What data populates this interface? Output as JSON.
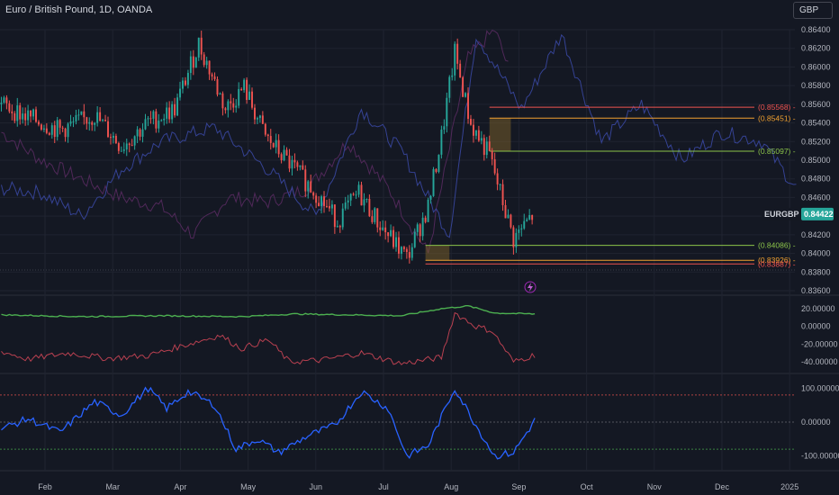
{
  "header": {
    "symbol_title": "Euro / British Pound, 1D, OANDA",
    "currency_button": "GBP"
  },
  "colors": {
    "background": "#141823",
    "grid": "#1f2330",
    "candle_up": "#26a69a",
    "candle_down": "#ef5350",
    "overlay_blue": "#3b4aa8",
    "overlay_purple": "#5b2b63",
    "level_red": "#ef5350",
    "level_orange": "#f0a030",
    "level_green": "#8bc34a",
    "price_tag": "#26a69a",
    "osc_green": "#4caf50",
    "osc_red": "#b84050",
    "osc_blue": "#2962ff"
  },
  "chart_data": [
    {
      "type": "candlestick",
      "symbol": "EURGBP",
      "last_price": "0.84422",
      "y_ticks": [
        "0.86400",
        "0.86200",
        "0.86000",
        "0.85800",
        "0.85600",
        "0.85400",
        "0.85200",
        "0.85000",
        "0.84800",
        "0.84600",
        "0.84400",
        "0.84200",
        "0.84000",
        "0.83800",
        "0.83600"
      ],
      "ylim": [
        0.836,
        0.864
      ],
      "x_ticks": [
        "Feb",
        "Mar",
        "Apr",
        "May",
        "Jun",
        "Jul",
        "Aug",
        "Sep",
        "Oct",
        "Nov",
        "Dec",
        "2025"
      ],
      "close_anchors": [
        {
          "x": 0,
          "y": 0.856
        },
        {
          "x": 10,
          "y": 0.8546
        },
        {
          "x": 22,
          "y": 0.8532
        },
        {
          "x": 35,
          "y": 0.8548
        },
        {
          "x": 45,
          "y": 0.8515
        },
        {
          "x": 55,
          "y": 0.854
        },
        {
          "x": 65,
          "y": 0.8555
        },
        {
          "x": 74,
          "y": 0.8625
        },
        {
          "x": 84,
          "y": 0.8555
        },
        {
          "x": 91,
          "y": 0.8578
        },
        {
          "x": 99,
          "y": 0.8525
        },
        {
          "x": 110,
          "y": 0.849
        },
        {
          "x": 118,
          "y": 0.8465
        },
        {
          "x": 126,
          "y": 0.8435
        },
        {
          "x": 134,
          "y": 0.8465
        },
        {
          "x": 142,
          "y": 0.843
        },
        {
          "x": 152,
          "y": 0.8395
        },
        {
          "x": 160,
          "y": 0.845
        },
        {
          "x": 165,
          "y": 0.8525
        },
        {
          "x": 170,
          "y": 0.8615
        },
        {
          "x": 176,
          "y": 0.8538
        },
        {
          "x": 183,
          "y": 0.8505
        },
        {
          "x": 192,
          "y": 0.8415
        },
        {
          "x": 200,
          "y": 0.8444
        }
      ],
      "overlay_blue_anchors": [
        {
          "x": 0,
          "y": 0.847
        },
        {
          "x": 15,
          "y": 0.8465
        },
        {
          "x": 30,
          "y": 0.844
        },
        {
          "x": 45,
          "y": 0.849
        },
        {
          "x": 60,
          "y": 0.852
        },
        {
          "x": 80,
          "y": 0.8535
        },
        {
          "x": 100,
          "y": 0.849
        },
        {
          "x": 118,
          "y": 0.844
        },
        {
          "x": 135,
          "y": 0.8555
        },
        {
          "x": 150,
          "y": 0.851
        },
        {
          "x": 168,
          "y": 0.842
        },
        {
          "x": 178,
          "y": 0.8635
        },
        {
          "x": 195,
          "y": 0.8555
        },
        {
          "x": 210,
          "y": 0.8635
        },
        {
          "x": 225,
          "y": 0.852
        },
        {
          "x": 240,
          "y": 0.856
        },
        {
          "x": 255,
          "y": 0.85
        },
        {
          "x": 270,
          "y": 0.853
        },
        {
          "x": 285,
          "y": 0.852
        },
        {
          "x": 298,
          "y": 0.847
        }
      ],
      "overlay_purple_anchors": [
        {
          "x": 0,
          "y": 0.853
        },
        {
          "x": 15,
          "y": 0.85
        },
        {
          "x": 30,
          "y": 0.848
        },
        {
          "x": 45,
          "y": 0.846
        },
        {
          "x": 60,
          "y": 0.845
        },
        {
          "x": 72,
          "y": 0.842
        },
        {
          "x": 85,
          "y": 0.846
        },
        {
          "x": 100,
          "y": 0.8455
        },
        {
          "x": 115,
          "y": 0.847
        },
        {
          "x": 130,
          "y": 0.852
        },
        {
          "x": 145,
          "y": 0.847
        },
        {
          "x": 160,
          "y": 0.84
        },
        {
          "x": 175,
          "y": 0.861
        },
        {
          "x": 185,
          "y": 0.864
        },
        {
          "x": 190,
          "y": 0.86
        }
      ],
      "levels": [
        {
          "label": "(0.85568)",
          "value": 0.85568,
          "color": "#ef5350",
          "from_x": 183
        },
        {
          "label": "(0.85451)",
          "value": 0.85451,
          "color": "#f0a030",
          "from_x": 183
        },
        {
          "label": "(0.85097)",
          "value": 0.85097,
          "color": "#8bc34a",
          "from_x": 183
        },
        {
          "label": "(0.84086)",
          "value": 0.84086,
          "color": "#8bc34a",
          "from_x": 159
        },
        {
          "label": "(0.83926)",
          "value": 0.83926,
          "color": "#f0a030",
          "from_x": 159
        },
        {
          "label": "(0.83887)",
          "value": 0.83887,
          "color": "#ef5350",
          "from_x": 159
        }
      ],
      "zones": [
        {
          "from_x": 183,
          "to_x": 191,
          "y0": 0.85097,
          "y1": 0.85451
        },
        {
          "from_x": 159,
          "to_x": 168,
          "y0": 0.83926,
          "y1": 0.84086
        }
      ],
      "bars": 200,
      "x_total": 298
    },
    {
      "type": "line",
      "y_ticks": [
        "20.00000",
        "0.00000",
        "-20.00000",
        "-40.00000"
      ],
      "ylim": [
        -48,
        26
      ],
      "series": [
        {
          "color": "#4caf50",
          "anchors": [
            {
              "x": 0,
              "y": 13
            },
            {
              "x": 30,
              "y": 11
            },
            {
              "x": 60,
              "y": 12
            },
            {
              "x": 90,
              "y": 11
            },
            {
              "x": 110,
              "y": 14
            },
            {
              "x": 130,
              "y": 13
            },
            {
              "x": 150,
              "y": 12
            },
            {
              "x": 165,
              "y": 20
            },
            {
              "x": 175,
              "y": 23
            },
            {
              "x": 185,
              "y": 15
            },
            {
              "x": 200,
              "y": 14
            }
          ]
        },
        {
          "color": "#b84050",
          "anchors": [
            {
              "x": 0,
              "y": -28
            },
            {
              "x": 10,
              "y": -37
            },
            {
              "x": 25,
              "y": -30
            },
            {
              "x": 40,
              "y": -36
            },
            {
              "x": 55,
              "y": -33
            },
            {
              "x": 70,
              "y": -20
            },
            {
              "x": 82,
              "y": -10
            },
            {
              "x": 90,
              "y": -25
            },
            {
              "x": 100,
              "y": -15
            },
            {
              "x": 108,
              "y": -40
            },
            {
              "x": 120,
              "y": -38
            },
            {
              "x": 135,
              "y": -30
            },
            {
              "x": 150,
              "y": -42
            },
            {
              "x": 165,
              "y": -35
            },
            {
              "x": 170,
              "y": 15
            },
            {
              "x": 178,
              "y": 0
            },
            {
              "x": 184,
              "y": -5
            },
            {
              "x": 192,
              "y": -40
            },
            {
              "x": 200,
              "y": -32
            }
          ]
        }
      ]
    },
    {
      "type": "line",
      "y_ticks": [
        "100.00000",
        "0.00000",
        "-100.00000"
      ],
      "ylim": [
        -130,
        130
      ],
      "hlines": [
        {
          "value": 80,
          "color": "#ef5350"
        },
        {
          "value": 0,
          "color": "#6d6f78"
        },
        {
          "value": -80,
          "color": "#4caf50"
        }
      ],
      "series": [
        {
          "color": "#2962ff",
          "anchors": [
            {
              "x": 0,
              "y": -20
            },
            {
              "x": 10,
              "y": 10
            },
            {
              "x": 22,
              "y": -30
            },
            {
              "x": 35,
              "y": 60
            },
            {
              "x": 45,
              "y": 20
            },
            {
              "x": 55,
              "y": 100
            },
            {
              "x": 62,
              "y": 40
            },
            {
              "x": 70,
              "y": 90
            },
            {
              "x": 80,
              "y": 50
            },
            {
              "x": 88,
              "y": -80
            },
            {
              "x": 96,
              "y": -50
            },
            {
              "x": 104,
              "y": -90
            },
            {
              "x": 115,
              "y": -40
            },
            {
              "x": 125,
              "y": -10
            },
            {
              "x": 135,
              "y": 90
            },
            {
              "x": 145,
              "y": 40
            },
            {
              "x": 152,
              "y": -100
            },
            {
              "x": 160,
              "y": -70
            },
            {
              "x": 170,
              "y": 100
            },
            {
              "x": 178,
              "y": -10
            },
            {
              "x": 185,
              "y": -100
            },
            {
              "x": 192,
              "y": -90
            },
            {
              "x": 200,
              "y": 5
            }
          ]
        }
      ]
    }
  ]
}
